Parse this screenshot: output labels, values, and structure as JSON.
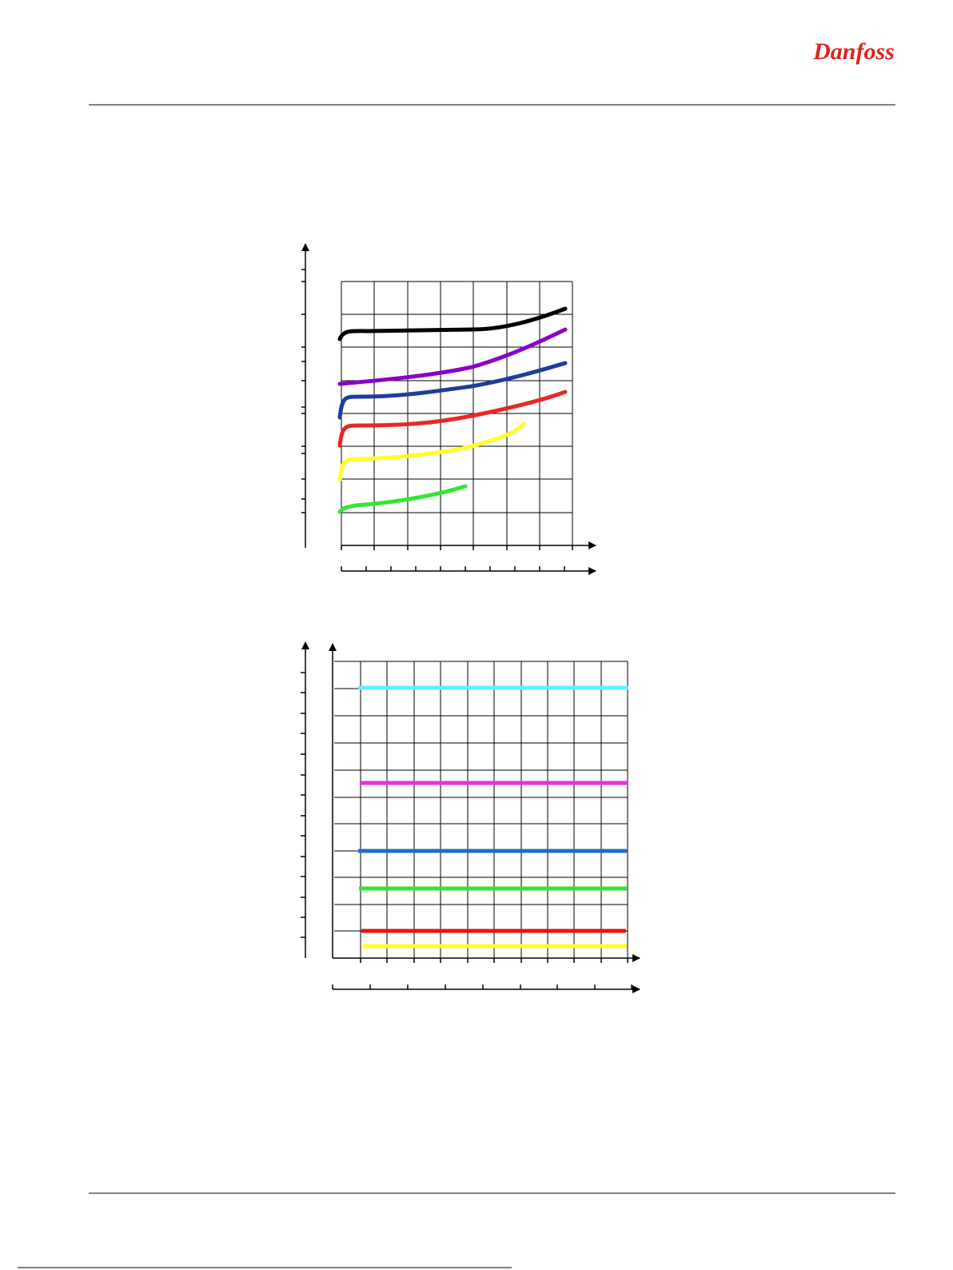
{
  "header": {
    "logo": "Danfoss"
  }
}
